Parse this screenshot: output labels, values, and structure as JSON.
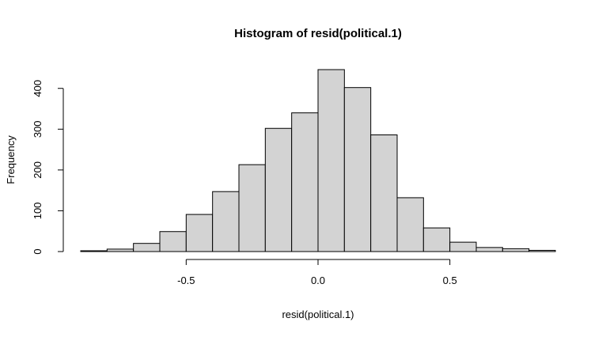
{
  "chart_data": {
    "type": "bar",
    "title": "Histogram of resid(political.1)",
    "xlabel": "resid(political.1)",
    "ylabel": "Frequency",
    "bin_edges": [
      -0.9,
      -0.8,
      -0.7,
      -0.6,
      -0.5,
      -0.4,
      -0.3,
      -0.2,
      -0.1,
      0.0,
      0.1,
      0.2,
      0.3,
      0.4,
      0.5,
      0.6,
      0.7,
      0.8,
      0.9
    ],
    "values": [
      2,
      6,
      20,
      49,
      91,
      147,
      213,
      302,
      340,
      446,
      402,
      286,
      132,
      58,
      23,
      10,
      7,
      3
    ],
    "xlim": [
      -0.9,
      0.9
    ],
    "ylim": [
      0,
      446
    ],
    "x_ticks": [
      -0.5,
      0.0,
      0.5
    ],
    "x_tick_labels": [
      "-0.5",
      "0.0",
      "0.5"
    ],
    "y_ticks": [
      0,
      100,
      200,
      300,
      400
    ],
    "y_tick_labels": [
      "0",
      "100",
      "200",
      "300",
      "400"
    ],
    "grid": false,
    "bar_color": "#d3d3d3",
    "edge_color": "#000000"
  }
}
